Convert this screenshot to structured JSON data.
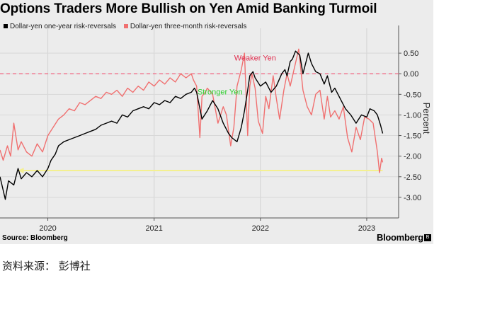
{
  "title": "Options Traders More Bullish on Yen Amid Banking Turmoil",
  "source": "Source: Bloomberg",
  "brand": "Bloomberg",
  "caption": "资料来源： 彭博社",
  "colors": {
    "one_year": "#000000",
    "three_month": "#f07070",
    "reference": "#f07890",
    "arrow": "#f4f090",
    "weaker": "#e03050",
    "stronger": "#30d030"
  },
  "chart_data": {
    "type": "line",
    "ylabel": "Percent",
    "ylim": [
      -3.5,
      1.0
    ],
    "y_ticks": [
      "0.50",
      "0.00",
      "-0.50",
      "-1.00",
      "-1.50",
      "-2.00",
      "-2.50",
      "-3.00"
    ],
    "y_tick_values": [
      0.5,
      0.0,
      -0.5,
      -1.0,
      -1.5,
      -2.0,
      -2.5,
      -3.0
    ],
    "x_ticks": [
      "2020",
      "2021",
      "2022",
      "2023"
    ],
    "x_tick_values": [
      2020.0,
      2021.0,
      2022.0,
      2023.0
    ],
    "xlim": [
      2019.55,
      2023.3
    ],
    "reference_line": 0.0,
    "annotations": [
      {
        "text": "Weaker Yen",
        "x": 2021.95,
        "y": 0.32,
        "color_key": "weaker"
      },
      {
        "text": "Stronger Yen",
        "x": 2021.62,
        "y": -0.5,
        "color_key": "stronger"
      }
    ],
    "arrow": {
      "y": -2.35,
      "x_from": 2023.15,
      "x_to": 2019.72
    },
    "series": [
      {
        "name": "Dollar-yen one-year risk-reversals",
        "key": "one_year",
        "x": [
          2019.55,
          2019.6,
          2019.63,
          2019.68,
          2019.72,
          2019.75,
          2019.8,
          2019.85,
          2019.9,
          2019.95,
          2020.0,
          2020.03,
          2020.07,
          2020.1,
          2020.15,
          2020.2,
          2020.25,
          2020.3,
          2020.35,
          2020.4,
          2020.45,
          2020.5,
          2020.55,
          2020.6,
          2020.65,
          2020.7,
          2020.75,
          2020.8,
          2020.85,
          2020.9,
          2020.95,
          2021.0,
          2021.05,
          2021.1,
          2021.15,
          2021.2,
          2021.25,
          2021.3,
          2021.35,
          2021.38,
          2021.4,
          2021.45,
          2021.5,
          2021.55,
          2021.6,
          2021.65,
          2021.7,
          2021.73,
          2021.78,
          2021.82,
          2021.85,
          2021.88,
          2021.9,
          2021.93,
          2021.95,
          2022.0,
          2022.05,
          2022.1,
          2022.15,
          2022.2,
          2022.23,
          2022.25,
          2022.28,
          2022.3,
          2022.33,
          2022.37,
          2022.4,
          2022.45,
          2022.48,
          2022.52,
          2022.56,
          2022.6,
          2022.63,
          2022.67,
          2022.7,
          2022.75,
          2022.8,
          2022.85,
          2022.9,
          2022.95,
          2023.0,
          2023.03,
          2023.07,
          2023.1,
          2023.13,
          2023.15
        ],
        "y": [
          -2.5,
          -3.05,
          -2.6,
          -2.7,
          -2.3,
          -2.55,
          -2.4,
          -2.5,
          -2.35,
          -2.5,
          -2.3,
          -2.1,
          -1.95,
          -1.75,
          -1.65,
          -1.6,
          -1.55,
          -1.5,
          -1.45,
          -1.4,
          -1.35,
          -1.25,
          -1.2,
          -1.15,
          -1.2,
          -1.0,
          -1.05,
          -0.9,
          -0.85,
          -0.8,
          -0.85,
          -0.7,
          -0.75,
          -0.65,
          -0.7,
          -0.55,
          -0.6,
          -0.5,
          -0.45,
          -0.35,
          -0.45,
          -1.1,
          -0.9,
          -0.65,
          -0.85,
          -1.2,
          -1.45,
          -1.55,
          -1.65,
          -1.3,
          -0.9,
          -0.4,
          -0.05,
          0.05,
          -0.1,
          -0.3,
          -0.2,
          -0.45,
          -0.3,
          0.0,
          0.1,
          -0.05,
          0.3,
          0.35,
          0.55,
          0.45,
          0.0,
          0.5,
          0.25,
          0.05,
          0.0,
          -0.25,
          -0.05,
          -0.45,
          -0.35,
          -0.6,
          -0.85,
          -1.0,
          -1.2,
          -1.0,
          -1.05,
          -0.85,
          -0.9,
          -1.0,
          -1.25,
          -1.45
        ]
      },
      {
        "name": "Dollar-yen three-month risk-reversals",
        "key": "three_month",
        "x": [
          2019.55,
          2019.58,
          2019.62,
          2019.65,
          2019.68,
          2019.72,
          2019.75,
          2019.8,
          2019.85,
          2019.9,
          2019.95,
          2020.0,
          2020.05,
          2020.1,
          2020.15,
          2020.2,
          2020.25,
          2020.3,
          2020.35,
          2020.4,
          2020.45,
          2020.5,
          2020.55,
          2020.6,
          2020.65,
          2020.7,
          2020.75,
          2020.8,
          2020.85,
          2020.9,
          2020.95,
          2021.0,
          2021.05,
          2021.1,
          2021.15,
          2021.2,
          2021.25,
          2021.3,
          2021.35,
          2021.37,
          2021.4,
          2021.43,
          2021.45,
          2021.48,
          2021.5,
          2021.55,
          2021.6,
          2021.65,
          2021.68,
          2021.72,
          2021.75,
          2021.78,
          2021.82,
          2021.85,
          2021.88,
          2021.9,
          2021.92,
          2021.95,
          2021.98,
          2022.02,
          2022.05,
          2022.08,
          2022.12,
          2022.15,
          2022.18,
          2022.22,
          2022.25,
          2022.28,
          2022.32,
          2022.36,
          2022.4,
          2022.44,
          2022.48,
          2022.52,
          2022.56,
          2022.6,
          2022.63,
          2022.66,
          2022.7,
          2022.74,
          2022.78,
          2022.82,
          2022.86,
          2022.9,
          2022.94,
          2022.98,
          2023.02,
          2023.06,
          2023.1,
          2023.12,
          2023.14,
          2023.15
        ],
        "y": [
          -1.85,
          -2.1,
          -1.75,
          -2.0,
          -1.2,
          -1.85,
          -1.65,
          -1.9,
          -2.0,
          -1.7,
          -1.9,
          -1.5,
          -1.3,
          -1.1,
          -1.0,
          -0.85,
          -0.9,
          -0.7,
          -0.75,
          -0.65,
          -0.55,
          -0.6,
          -0.45,
          -0.5,
          -0.4,
          -0.55,
          -0.35,
          -0.45,
          -0.3,
          -0.4,
          -0.2,
          -0.3,
          -0.15,
          -0.25,
          -0.1,
          -0.2,
          0.0,
          -0.1,
          0.0,
          -0.15,
          -0.3,
          -1.55,
          -0.55,
          -0.45,
          -0.35,
          -0.5,
          -1.2,
          -0.8,
          -1.0,
          -1.75,
          -1.3,
          -0.3,
          0.1,
          0.5,
          -1.5,
          -0.3,
          0.0,
          -0.35,
          -1.15,
          -1.45,
          -0.55,
          -0.85,
          -0.05,
          -0.6,
          -1.1,
          -0.4,
          0.0,
          -0.3,
          0.15,
          0.6,
          -0.4,
          -0.8,
          -1.0,
          -0.5,
          -0.4,
          -1.1,
          -0.55,
          -1.05,
          -0.9,
          -1.1,
          -0.8,
          -1.55,
          -1.9,
          -1.3,
          -1.6,
          -1.05,
          -1.1,
          -1.2,
          -1.9,
          -2.4,
          -2.05,
          -2.15
        ]
      }
    ]
  }
}
